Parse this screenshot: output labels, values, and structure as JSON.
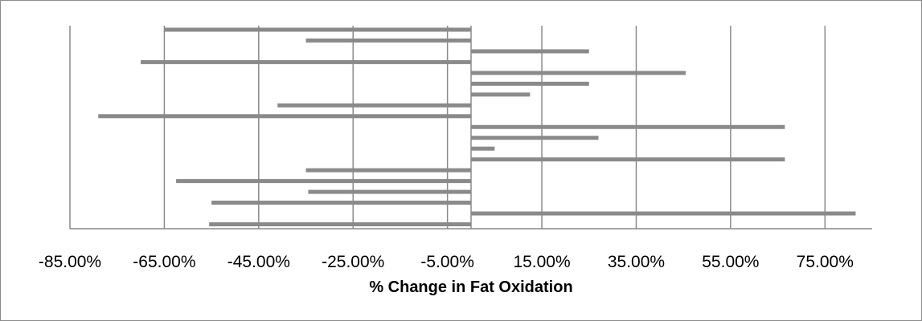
{
  "chart_data": {
    "type": "bar",
    "orientation": "horizontal",
    "title": "",
    "xlabel": "% Change in Fat Oxidation",
    "ylabel": "",
    "xlim": [
      -85,
      85
    ],
    "xticks": [
      -85,
      -65,
      -45,
      -25,
      -5,
      15,
      35,
      55,
      75
    ],
    "tick_labels": [
      "-85.00%",
      "-65.00%",
      "-45.00%",
      "-25.00%",
      "-5.00%",
      "15.00%",
      "35.00%",
      "55.00%",
      "75.00%"
    ],
    "grid": "vertical",
    "legend": "none",
    "colors": {
      "bar": "#8a8a8a",
      "grid": "#8a8a8a",
      "frame": "#8c8c8c"
    },
    "values": [
      -65,
      -35,
      25,
      -70,
      45.5,
      25,
      12.5,
      -41,
      -79,
      66.5,
      27,
      5,
      66.5,
      -35,
      -62.5,
      -34.5,
      -55,
      81.5,
      -55.5
    ]
  }
}
